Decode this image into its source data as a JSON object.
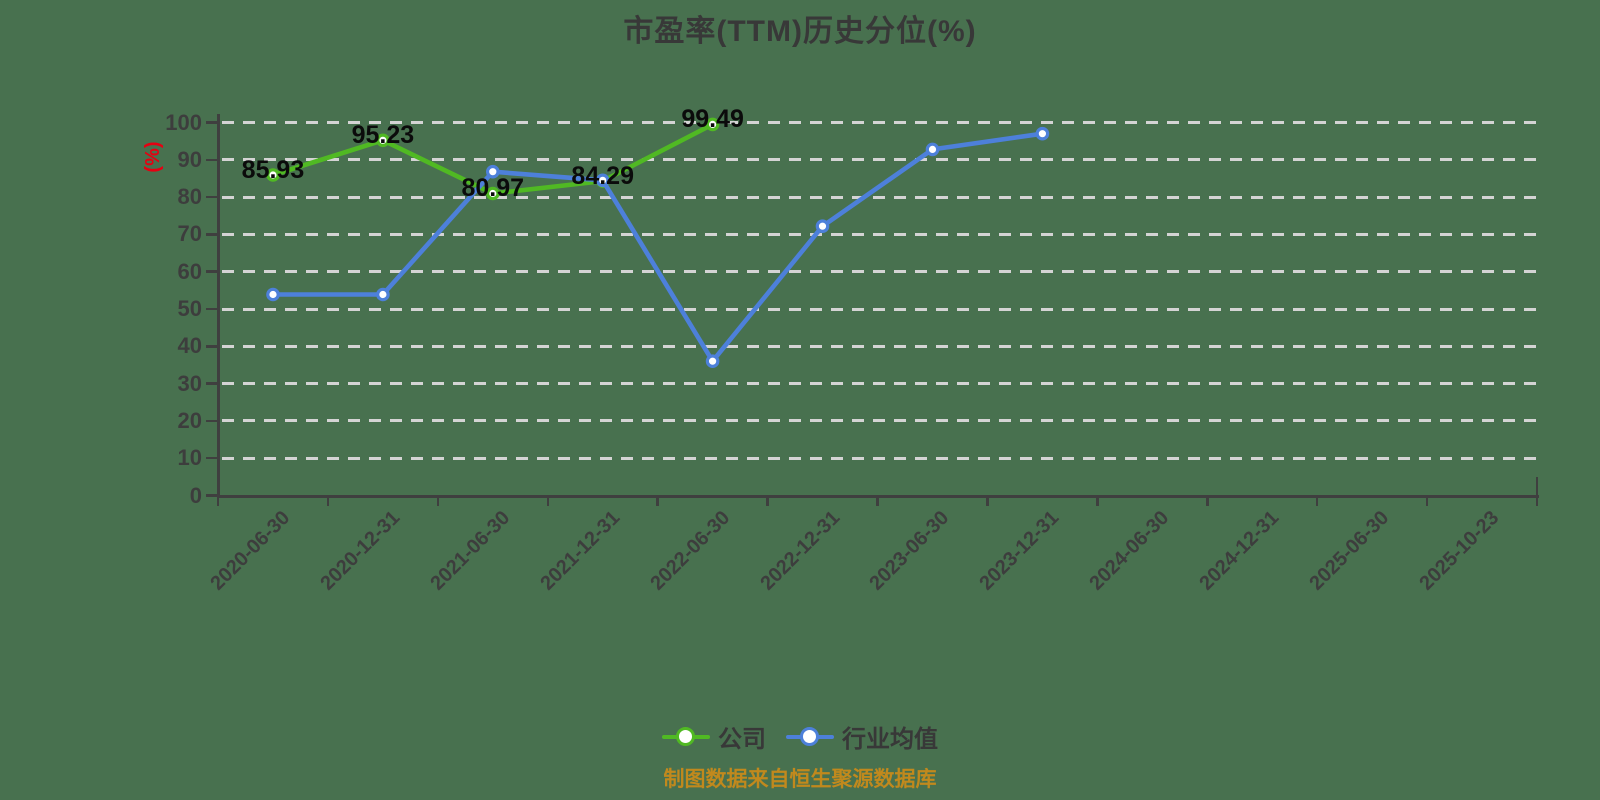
{
  "chart_data": {
    "type": "line",
    "title": "市盈率(TTM)历史分位(%)",
    "ylabel": "(%)",
    "ylim": [
      0,
      100
    ],
    "ytick_step": 10,
    "grid": "horizontal-dashed",
    "legend_position": "bottom",
    "categories": [
      "2020-06-30",
      "2020-12-31",
      "2021-06-30",
      "2021-12-31",
      "2022-06-30",
      "2022-12-31",
      "2023-06-30",
      "2023-12-31",
      "2024-06-30",
      "2024-12-31",
      "2025-06-30",
      "2025-10-23"
    ],
    "series": [
      {
        "name": "公司",
        "key": "company",
        "color": "#50b923",
        "values": [
          85.93,
          95.23,
          80.97,
          84.29,
          99.49
        ],
        "point_labels": [
          "85.93",
          "95.23",
          "80.97",
          "84.29",
          "99.49"
        ]
      },
      {
        "name": "行业均值",
        "key": "industry-average",
        "color": "#4d80da",
        "values": [
          53.9,
          53.9,
          86.8,
          84.5,
          36.0,
          72.2,
          92.8,
          97.0
        ]
      }
    ]
  },
  "footer": {
    "source_note": "制图数据来自恒生聚源数据库"
  },
  "colors": {
    "background": "#48714F",
    "grid": "#d4d4d4",
    "axis": "#3f3f3f",
    "tick_label": "#3d3d3d",
    "title": "#383838",
    "value_label": "#0b0b0b",
    "ylabel": "#e60012",
    "footer": "#c1891d",
    "marker_fill": "#ffffff",
    "legend_text": "#383838"
  }
}
